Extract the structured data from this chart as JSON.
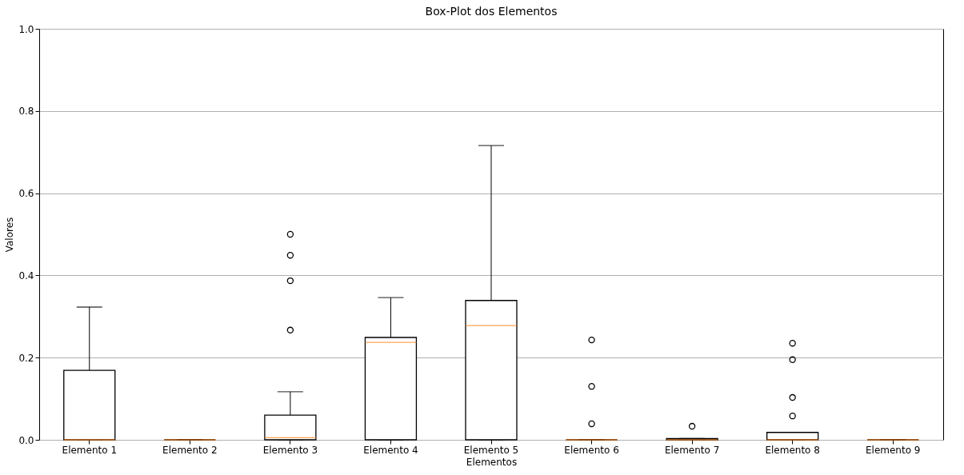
{
  "chart_data": {
    "type": "box",
    "title": "Box-Plot dos Elementos",
    "xlabel": "Elementos",
    "ylabel": "Valores",
    "categories": [
      "Elemento 1",
      "Elemento 2",
      "Elemento 3",
      "Elemento 4",
      "Elemento 5",
      "Elemento 6",
      "Elemento 7",
      "Elemento 8",
      "Elemento 9"
    ],
    "boxes": [
      {
        "low": 0,
        "q1": 0,
        "median": 0,
        "q3": 0.169,
        "high": 0.323
      },
      {
        "low": 0,
        "q1": 0,
        "median": 0,
        "q3": 0,
        "high": 0
      },
      {
        "low": 0,
        "q1": 0,
        "median": 0.005,
        "q3": 0.06,
        "high": 0.117,
        "outliers": [
          0.5,
          0.449,
          0.387,
          0.267
        ]
      },
      {
        "low": 0,
        "q1": 0,
        "median": 0.237,
        "q3": 0.249,
        "high": 0.346
      },
      {
        "low": 0,
        "q1": 0,
        "median": 0.278,
        "q3": 0.339,
        "high": 0.716
      },
      {
        "low": 0,
        "q1": 0,
        "median": 0,
        "q3": 0,
        "high": 0,
        "outliers": [
          0.243,
          0.13,
          0.039
        ]
      },
      {
        "low": 0,
        "q1": 0,
        "median": 0,
        "q3": 0.003,
        "high": 0.003,
        "outliers": [
          0.033
        ]
      },
      {
        "low": 0,
        "q1": 0,
        "median": 0,
        "q3": 0.018,
        "high": 0.018,
        "outliers": [
          0.235,
          0.195,
          0.103,
          0.058
        ]
      },
      {
        "low": 0,
        "q1": 0,
        "median": 0,
        "q3": 0,
        "high": 0
      }
    ],
    "ylim": [
      0,
      1
    ],
    "yticks": [
      {
        "value": 0,
        "label": "0.0"
      },
      0.2,
      0.4,
      0.6,
      0.8,
      {
        "value": 1,
        "label": "1.0"
      }
    ],
    "grid": "y"
  }
}
